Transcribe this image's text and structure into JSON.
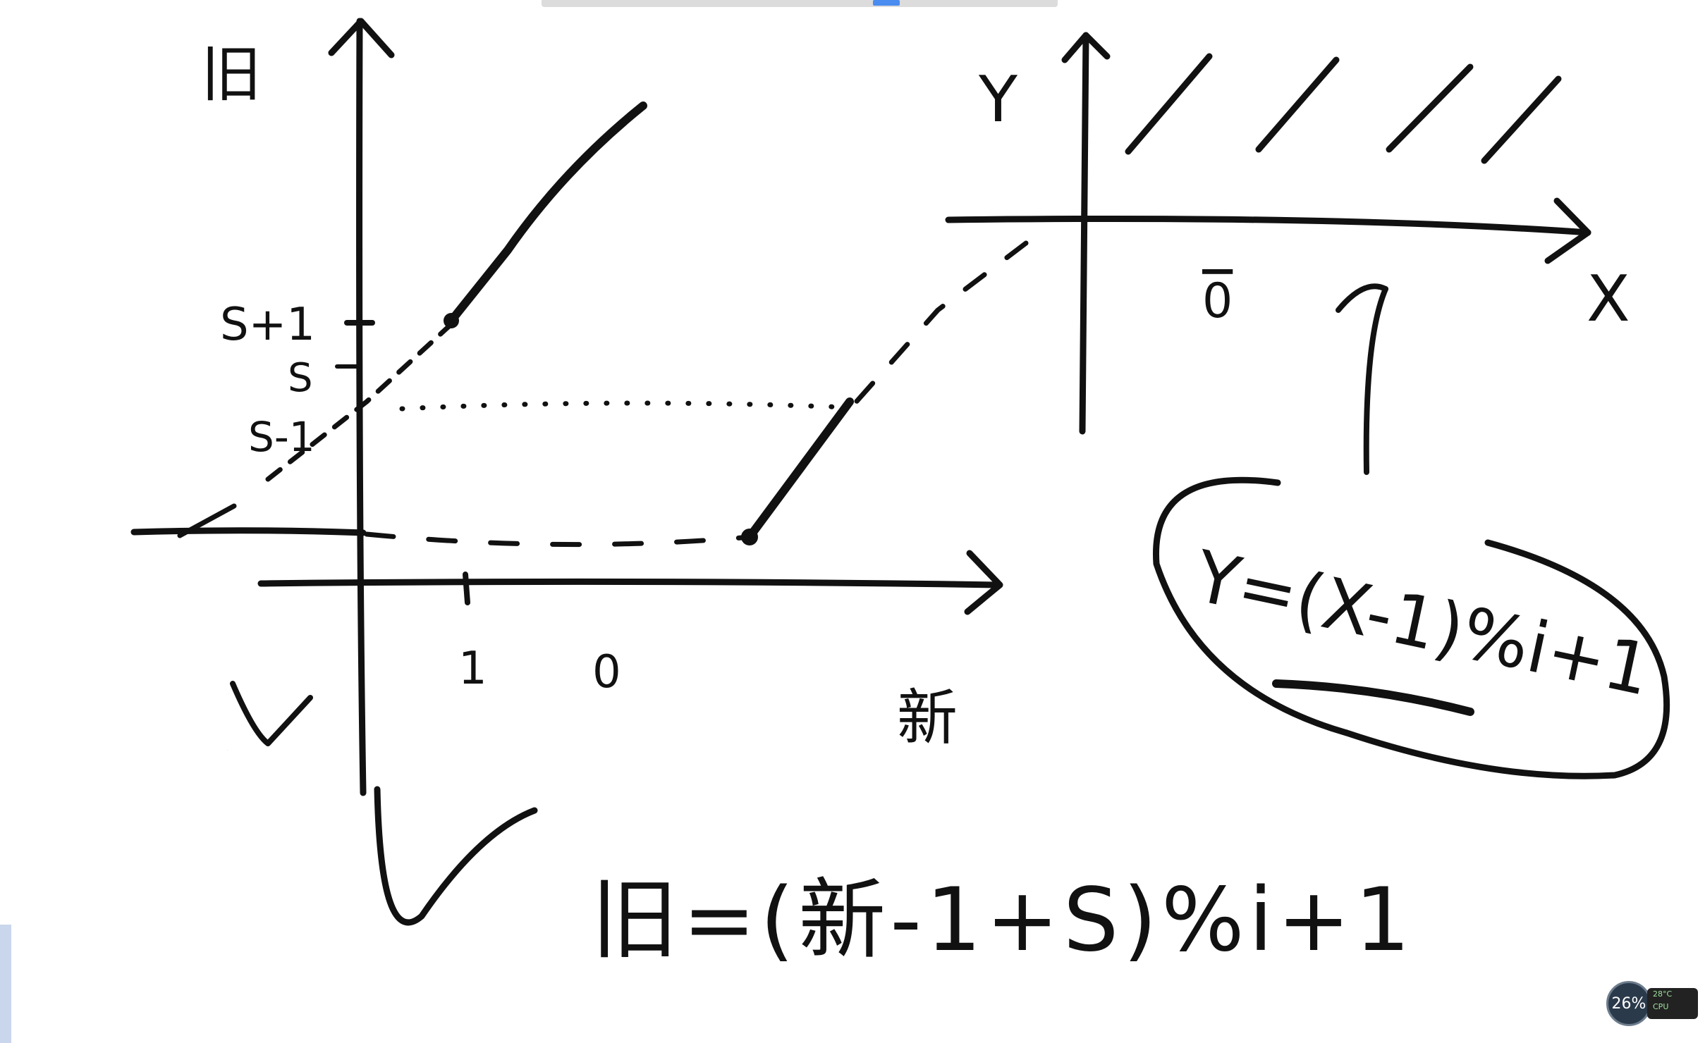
{
  "labels": {
    "left_y_axis": "旧",
    "left_x_axis": "新",
    "tick_s_plus_1": "S+1",
    "tick_s": "S",
    "tick_s_minus_1": "S-1",
    "tick_one": "1",
    "tick_zero": "0",
    "v_mark": "V",
    "right_y_axis": "Y",
    "right_x_axis": "X",
    "right_zero": "0",
    "circled_formula": "Y=(X-1)%i+1",
    "main_formula": "旧=(新-1+S)%i+1"
  },
  "widget": {
    "badge_value": "26%",
    "panel_line1": "28°C",
    "panel_line2": "CPU"
  }
}
